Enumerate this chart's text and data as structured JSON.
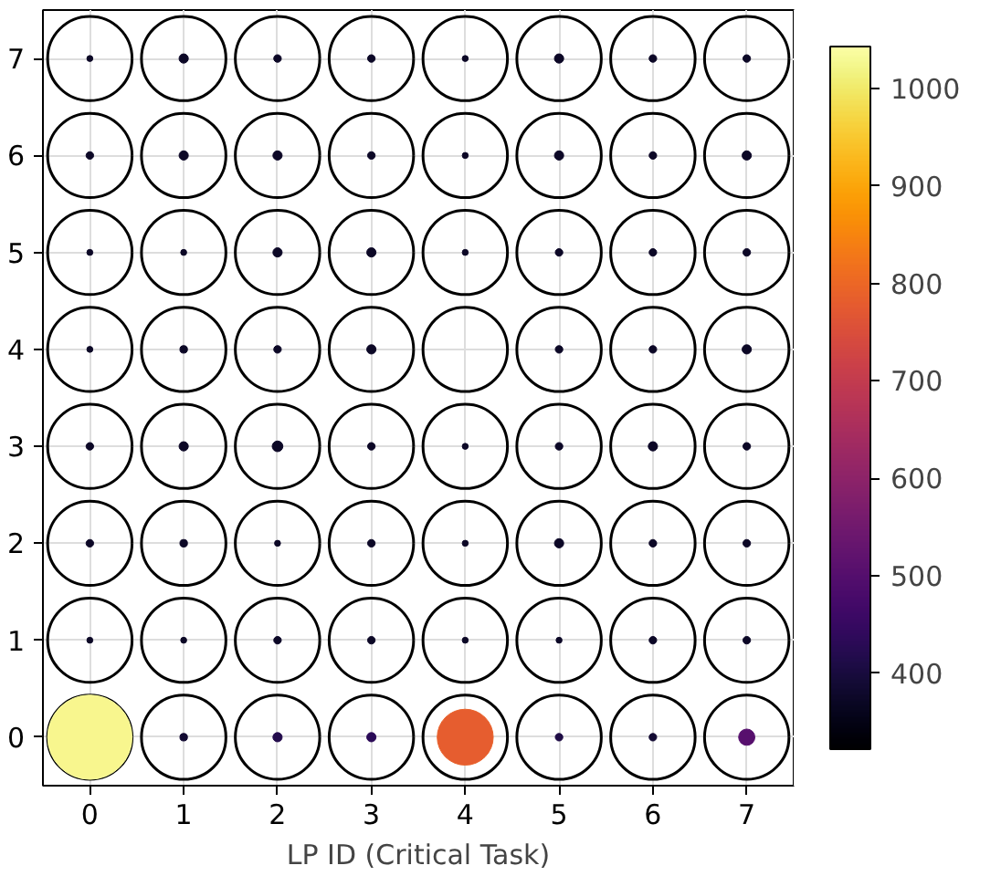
{
  "chart_data": {
    "type": "bubble",
    "xlabel": "LP ID (Critical Task)",
    "xlim": [
      -0.5,
      7.5
    ],
    "ylim": [
      -0.5,
      7.5
    ],
    "xticks": [
      0,
      1,
      2,
      3,
      4,
      5,
      6,
      7
    ],
    "yticks": [
      0,
      1,
      2,
      3,
      4,
      5,
      6,
      7
    ],
    "grid": true,
    "clim": [
      322,
      1043
    ],
    "cticks": [
      400,
      500,
      600,
      700,
      800,
      900,
      1000
    ],
    "series": [
      {
        "color": "#000000",
        "x": [
          0,
          1,
          2,
          3,
          4,
          5,
          6,
          7,
          0,
          1,
          2,
          3,
          4,
          5,
          6,
          7,
          0,
          1,
          2,
          3,
          4,
          5,
          6,
          7,
          0,
          1,
          2,
          3,
          4,
          5,
          6,
          7,
          0,
          1,
          2,
          3,
          4,
          5,
          6,
          7,
          0,
          1,
          2,
          3,
          4,
          5,
          6,
          7,
          0,
          1,
          2,
          3,
          4,
          5,
          6,
          7,
          0,
          1,
          2,
          3,
          4,
          5,
          6,
          7
        ],
        "values": [
          7,
          7,
          7,
          7,
          7,
          7,
          7,
          7,
          6,
          6,
          6,
          6,
          6,
          6,
          6,
          6,
          5,
          5,
          5,
          5,
          5,
          5,
          5,
          5,
          4,
          4,
          4,
          4,
          4,
          4,
          4,
          4,
          3,
          3,
          3,
          3,
          3,
          3,
          3,
          3,
          2,
          2,
          2,
          2,
          2,
          2,
          2,
          2,
          1,
          1,
          1,
          1,
          1,
          1,
          1,
          1,
          0,
          0,
          0,
          0,
          0,
          0,
          0,
          0
        ],
        "sizes": [
          1,
          1,
          1,
          1,
          1,
          1,
          1,
          1,
          1,
          1,
          1,
          1,
          1,
          1,
          1,
          1,
          1,
          1,
          1,
          1,
          1,
          1,
          1,
          1,
          1,
          1,
          1,
          1,
          1,
          1,
          1,
          1,
          1,
          1,
          1,
          1,
          1,
          1,
          1,
          1,
          1,
          1,
          1,
          1,
          1,
          1,
          1,
          1,
          1,
          1,
          1,
          1,
          1,
          1,
          1,
          1,
          1,
          1,
          1,
          1,
          1,
          1,
          1,
          1
        ]
      },
      {
        "x": [
          0,
          1,
          2,
          3,
          4,
          5,
          6,
          7,
          0,
          1,
          2,
          3,
          4,
          5,
          6,
          7,
          0,
          1,
          2,
          3,
          4,
          5,
          6,
          7,
          0,
          1,
          2,
          3,
          5,
          6,
          7,
          0,
          1,
          2,
          3,
          4,
          5,
          6,
          7,
          0,
          1,
          2,
          3,
          4,
          5,
          6,
          7,
          0,
          1,
          2,
          3,
          4,
          5,
          6,
          7,
          0,
          1,
          2,
          3,
          4,
          5,
          6,
          7
        ],
        "values": [
          7,
          7,
          7,
          7,
          7,
          7,
          7,
          7,
          6,
          6,
          6,
          6,
          6,
          6,
          6,
          6,
          5,
          5,
          5,
          5,
          5,
          5,
          5,
          5,
          4,
          4,
          4,
          4,
          4,
          4,
          4,
          3,
          3,
          3,
          3,
          3,
          3,
          3,
          3,
          2,
          2,
          2,
          2,
          2,
          2,
          2,
          2,
          1,
          1,
          1,
          1,
          1,
          1,
          1,
          1,
          0,
          0,
          0,
          0,
          0,
          0,
          0,
          0
        ],
        "sizes": [
          0.005,
          0.012,
          0.008,
          0.008,
          0.005,
          0.012,
          0.008,
          0.008,
          0.008,
          0.012,
          0.012,
          0.008,
          0.005,
          0.012,
          0.008,
          0.012,
          0.005,
          0.005,
          0.012,
          0.012,
          0.005,
          0.008,
          0.008,
          0.008,
          0.005,
          0.008,
          0.008,
          0.012,
          0.008,
          0.008,
          0.012,
          0.008,
          0.012,
          0.016,
          0.008,
          0.005,
          0.008,
          0.012,
          0.008,
          0.008,
          0.008,
          0.005,
          0.008,
          0.005,
          0.012,
          0.008,
          0.008,
          0.005,
          0.005,
          0.008,
          0.008,
          0.005,
          0.005,
          0.008,
          0.008,
          1,
          0.008,
          0.012,
          0.012,
          0.44,
          0.008,
          0.008,
          0.037
        ],
        "colors": [
          "#0c0826",
          "#0c0826",
          "#0c0826",
          "#0c0826",
          "#0c0826",
          "#0c0826",
          "#0c0826",
          "#0c0826",
          "#0c0826",
          "#0c0826",
          "#0c0826",
          "#0c0826",
          "#0c0826",
          "#0c0826",
          "#0c0826",
          "#0c0826",
          "#0c0826",
          "#0c0826",
          "#0c0826",
          "#0c0826",
          "#0c0826",
          "#0c0826",
          "#0c0826",
          "#0c0826",
          "#0c0826",
          "#0c0826",
          "#0c0826",
          "#0c0826",
          "#0c0826",
          "#0c0826",
          "#0c0826",
          "#0c0826",
          "#0c0826",
          "#0c0826",
          "#0c0826",
          "#0c0826",
          "#0c0826",
          "#0c0826",
          "#0c0826",
          "#0c0826",
          "#0c0826",
          "#0c0826",
          "#0c0826",
          "#0c0826",
          "#0c0826",
          "#0c0826",
          "#0c0826",
          "#0c0826",
          "#0c0826",
          "#0c0826",
          "#0c0826",
          "#0c0826",
          "#0c0826",
          "#0c0826",
          "#0c0826",
          "#f8f68e",
          "#120a32",
          "#230c4c",
          "#2a0b57",
          "#e65d2f",
          "#1e0c45",
          "#120a32",
          "#570f6d"
        ],
        "cvalues": [
          373,
          373,
          373,
          373,
          373,
          373,
          373,
          373,
          373,
          373,
          373,
          373,
          373,
          373,
          373,
          373,
          373,
          373,
          373,
          373,
          373,
          373,
          373,
          373,
          373,
          373,
          373,
          373,
          373,
          373,
          373,
          373,
          373,
          373,
          373,
          373,
          373,
          373,
          373,
          373,
          373,
          373,
          373,
          373,
          373,
          373,
          373,
          373,
          373,
          373,
          373,
          373,
          373,
          373,
          373,
          1035,
          387,
          418,
          432,
          790,
          411,
          387,
          500
        ]
      }
    ]
  }
}
